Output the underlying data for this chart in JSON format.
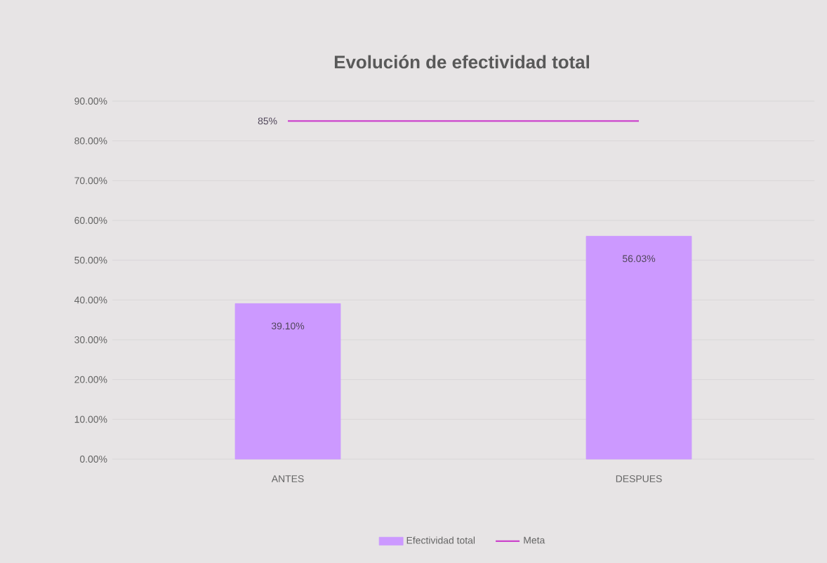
{
  "chart_data": {
    "type": "bar",
    "title": "Evolución de efectividad total",
    "categories": [
      "ANTES",
      "DESPUES"
    ],
    "series": [
      {
        "name": "Efectividad total",
        "color": "#cc99ff",
        "values": [
          39.1,
          56.03
        ],
        "value_labels": [
          "39.10%",
          "56.03%"
        ]
      },
      {
        "name": "Meta",
        "type": "line",
        "color": "#cc44cc",
        "values": [
          85,
          85
        ],
        "value_labels": [
          "85%",
          null
        ]
      }
    ],
    "ylim": [
      0,
      90
    ],
    "yticks": [
      {
        "value": 0,
        "label": "0.00%"
      },
      {
        "value": 10,
        "label": "10.00%"
      },
      {
        "value": 20,
        "label": "20.00%"
      },
      {
        "value": 30,
        "label": "30.00%"
      },
      {
        "value": 40,
        "label": "40.00%"
      },
      {
        "value": 50,
        "label": "50.00%"
      },
      {
        "value": 60,
        "label": "60.00%"
      },
      {
        "value": 70,
        "label": "70.00%"
      },
      {
        "value": 80,
        "label": "80.00%"
      },
      {
        "value": 90,
        "label": "90.00%"
      }
    ],
    "grid": "y",
    "legend": "bottom",
    "marker": "none",
    "line_style": "solid"
  }
}
